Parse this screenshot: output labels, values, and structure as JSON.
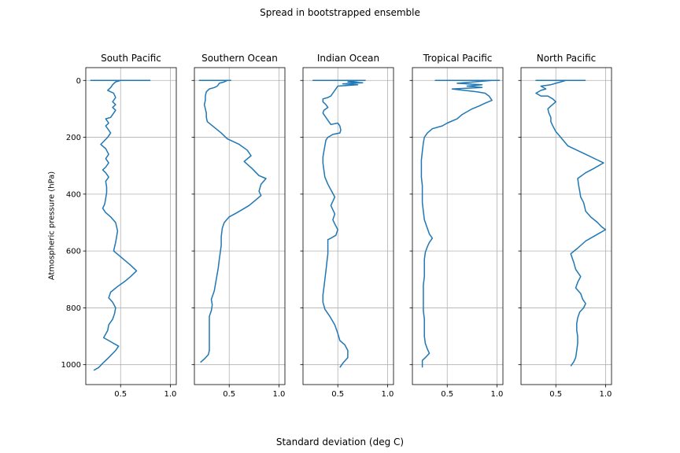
{
  "chart_data": {
    "type": "line",
    "title": "Spread in bootstrapped ensemble",
    "xlabel": "Standard deviation (deg C)",
    "ylabel": "Atmospheric pressure (hPa)",
    "xlim": [
      0.15,
      1.06
    ],
    "ylim": [
      1070,
      -45
    ],
    "y_inverted": true,
    "xticks": [
      "0.5",
      "1.0"
    ],
    "yticks": [
      "0",
      "200",
      "400",
      "600",
      "800",
      "1000"
    ],
    "grid": true,
    "line_color": "#1f77b4",
    "panels": [
      {
        "title": "South Pacific",
        "points": [
          [
            0.8,
            0
          ],
          [
            0.2,
            0
          ],
          [
            0.5,
            0
          ],
          [
            0.45,
            5
          ],
          [
            0.42,
            15
          ],
          [
            0.4,
            25
          ],
          [
            0.37,
            35
          ],
          [
            0.43,
            45
          ],
          [
            0.45,
            60
          ],
          [
            0.42,
            75
          ],
          [
            0.45,
            85
          ],
          [
            0.42,
            95
          ],
          [
            0.45,
            105
          ],
          [
            0.43,
            115
          ],
          [
            0.4,
            130
          ],
          [
            0.35,
            135
          ],
          [
            0.38,
            150
          ],
          [
            0.35,
            160
          ],
          [
            0.38,
            175
          ],
          [
            0.4,
            185
          ],
          [
            0.37,
            200
          ],
          [
            0.3,
            225
          ],
          [
            0.35,
            240
          ],
          [
            0.38,
            260
          ],
          [
            0.35,
            275
          ],
          [
            0.38,
            290
          ],
          [
            0.35,
            305
          ],
          [
            0.32,
            315
          ],
          [
            0.35,
            325
          ],
          [
            0.38,
            340
          ],
          [
            0.35,
            355
          ],
          [
            0.36,
            375
          ],
          [
            0.36,
            395
          ],
          [
            0.35,
            415
          ],
          [
            0.34,
            435
          ],
          [
            0.32,
            450
          ],
          [
            0.35,
            465
          ],
          [
            0.4,
            480
          ],
          [
            0.45,
            500
          ],
          [
            0.47,
            530
          ],
          [
            0.45,
            570
          ],
          [
            0.43,
            600
          ],
          [
            0.5,
            620
          ],
          [
            0.6,
            650
          ],
          [
            0.66,
            670
          ],
          [
            0.6,
            690
          ],
          [
            0.55,
            705
          ],
          [
            0.47,
            725
          ],
          [
            0.4,
            745
          ],
          [
            0.38,
            765
          ],
          [
            0.42,
            780
          ],
          [
            0.45,
            800
          ],
          [
            0.44,
            820
          ],
          [
            0.42,
            840
          ],
          [
            0.38,
            860
          ],
          [
            0.37,
            880
          ],
          [
            0.33,
            905
          ],
          [
            0.38,
            915
          ],
          [
            0.43,
            925
          ],
          [
            0.48,
            935
          ],
          [
            0.45,
            950
          ],
          [
            0.38,
            975
          ],
          [
            0.32,
            995
          ],
          [
            0.28,
            1010
          ],
          [
            0.23,
            1020
          ]
        ]
      },
      {
        "title": "Southern Ocean",
        "points": [
          [
            0.52,
            0
          ],
          [
            0.2,
            0
          ],
          [
            0.48,
            0
          ],
          [
            0.45,
            5
          ],
          [
            0.4,
            10
          ],
          [
            0.38,
            20
          ],
          [
            0.35,
            25
          ],
          [
            0.3,
            30
          ],
          [
            0.27,
            40
          ],
          [
            0.26,
            55
          ],
          [
            0.26,
            70
          ],
          [
            0.25,
            85
          ],
          [
            0.26,
            100
          ],
          [
            0.27,
            115
          ],
          [
            0.27,
            130
          ],
          [
            0.28,
            145
          ],
          [
            0.35,
            165
          ],
          [
            0.42,
            185
          ],
          [
            0.48,
            205
          ],
          [
            0.6,
            225
          ],
          [
            0.68,
            245
          ],
          [
            0.72,
            265
          ],
          [
            0.65,
            285
          ],
          [
            0.73,
            310
          ],
          [
            0.8,
            335
          ],
          [
            0.87,
            345
          ],
          [
            0.82,
            365
          ],
          [
            0.8,
            390
          ],
          [
            0.82,
            405
          ],
          [
            0.7,
            440
          ],
          [
            0.58,
            465
          ],
          [
            0.5,
            480
          ],
          [
            0.45,
            500
          ],
          [
            0.43,
            520
          ],
          [
            0.42,
            550
          ],
          [
            0.42,
            580
          ],
          [
            0.41,
            605
          ],
          [
            0.4,
            630
          ],
          [
            0.39,
            660
          ],
          [
            0.37,
            700
          ],
          [
            0.35,
            740
          ],
          [
            0.32,
            770
          ],
          [
            0.33,
            790
          ],
          [
            0.32,
            810
          ],
          [
            0.3,
            830
          ],
          [
            0.3,
            855
          ],
          [
            0.3,
            880
          ],
          [
            0.3,
            905
          ],
          [
            0.3,
            930
          ],
          [
            0.3,
            950
          ],
          [
            0.29,
            965
          ],
          [
            0.25,
            980
          ],
          [
            0.21,
            992
          ]
        ]
      },
      {
        "title": "Indian Ocean",
        "points": [
          [
            0.78,
            0
          ],
          [
            0.25,
            0
          ],
          [
            0.72,
            0
          ],
          [
            0.6,
            5
          ],
          [
            0.75,
            8
          ],
          [
            0.55,
            12
          ],
          [
            0.7,
            15
          ],
          [
            0.5,
            20
          ],
          [
            0.48,
            30
          ],
          [
            0.45,
            45
          ],
          [
            0.43,
            55
          ],
          [
            0.4,
            60
          ],
          [
            0.35,
            65
          ],
          [
            0.35,
            75
          ],
          [
            0.38,
            85
          ],
          [
            0.4,
            95
          ],
          [
            0.36,
            105
          ],
          [
            0.35,
            115
          ],
          [
            0.37,
            125
          ],
          [
            0.4,
            140
          ],
          [
            0.43,
            155
          ],
          [
            0.5,
            150
          ],
          [
            0.52,
            160
          ],
          [
            0.53,
            175
          ],
          [
            0.52,
            185
          ],
          [
            0.45,
            190
          ],
          [
            0.4,
            200
          ],
          [
            0.38,
            210
          ],
          [
            0.37,
            230
          ],
          [
            0.36,
            250
          ],
          [
            0.35,
            270
          ],
          [
            0.35,
            290
          ],
          [
            0.36,
            315
          ],
          [
            0.37,
            340
          ],
          [
            0.4,
            365
          ],
          [
            0.43,
            385
          ],
          [
            0.47,
            410
          ],
          [
            0.45,
            425
          ],
          [
            0.43,
            440
          ],
          [
            0.45,
            455
          ],
          [
            0.47,
            470
          ],
          [
            0.45,
            490
          ],
          [
            0.47,
            505
          ],
          [
            0.5,
            525
          ],
          [
            0.48,
            545
          ],
          [
            0.43,
            555
          ],
          [
            0.4,
            560
          ],
          [
            0.4,
            580
          ],
          [
            0.4,
            610
          ],
          [
            0.39,
            640
          ],
          [
            0.38,
            670
          ],
          [
            0.37,
            700
          ],
          [
            0.36,
            730
          ],
          [
            0.35,
            755
          ],
          [
            0.35,
            780
          ],
          [
            0.37,
            805
          ],
          [
            0.42,
            830
          ],
          [
            0.47,
            860
          ],
          [
            0.5,
            890
          ],
          [
            0.52,
            915
          ],
          [
            0.57,
            930
          ],
          [
            0.6,
            950
          ],
          [
            0.6,
            975
          ],
          [
            0.55,
            995
          ],
          [
            0.52,
            1010
          ]
        ]
      },
      {
        "title": "Tropical Pacific",
        "points": [
          [
            1.03,
            0
          ],
          [
            0.38,
            0
          ],
          [
            0.95,
            0
          ],
          [
            0.6,
            10
          ],
          [
            0.85,
            15
          ],
          [
            0.7,
            20
          ],
          [
            0.85,
            25
          ],
          [
            0.55,
            30
          ],
          [
            0.8,
            40
          ],
          [
            0.88,
            45
          ],
          [
            0.92,
            55
          ],
          [
            0.95,
            70
          ],
          [
            0.88,
            80
          ],
          [
            0.82,
            90
          ],
          [
            0.75,
            100
          ],
          [
            0.7,
            110
          ],
          [
            0.65,
            120
          ],
          [
            0.6,
            135
          ],
          [
            0.5,
            150
          ],
          [
            0.45,
            160
          ],
          [
            0.35,
            170
          ],
          [
            0.3,
            185
          ],
          [
            0.27,
            200
          ],
          [
            0.26,
            220
          ],
          [
            0.25,
            250
          ],
          [
            0.24,
            280
          ],
          [
            0.24,
            310
          ],
          [
            0.24,
            340
          ],
          [
            0.25,
            370
          ],
          [
            0.25,
            400
          ],
          [
            0.25,
            430
          ],
          [
            0.26,
            460
          ],
          [
            0.27,
            490
          ],
          [
            0.3,
            520
          ],
          [
            0.32,
            540
          ],
          [
            0.35,
            555
          ],
          [
            0.32,
            570
          ],
          [
            0.3,
            585
          ],
          [
            0.28,
            605
          ],
          [
            0.27,
            630
          ],
          [
            0.27,
            660
          ],
          [
            0.27,
            690
          ],
          [
            0.26,
            720
          ],
          [
            0.26,
            750
          ],
          [
            0.26,
            780
          ],
          [
            0.26,
            810
          ],
          [
            0.27,
            840
          ],
          [
            0.27,
            870
          ],
          [
            0.27,
            900
          ],
          [
            0.28,
            925
          ],
          [
            0.3,
            945
          ],
          [
            0.32,
            960
          ],
          [
            0.28,
            975
          ],
          [
            0.25,
            985
          ],
          [
            0.25,
            1010
          ]
        ]
      },
      {
        "title": "North Pacific",
        "points": [
          [
            0.8,
            0
          ],
          [
            0.3,
            0
          ],
          [
            0.6,
            0
          ],
          [
            0.55,
            5
          ],
          [
            0.5,
            10
          ],
          [
            0.45,
            15
          ],
          [
            0.35,
            20
          ],
          [
            0.4,
            30
          ],
          [
            0.35,
            35
          ],
          [
            0.3,
            45
          ],
          [
            0.35,
            55
          ],
          [
            0.42,
            55
          ],
          [
            0.47,
            65
          ],
          [
            0.5,
            75
          ],
          [
            0.45,
            90
          ],
          [
            0.42,
            100
          ],
          [
            0.43,
            115
          ],
          [
            0.45,
            130
          ],
          [
            0.45,
            145
          ],
          [
            0.47,
            160
          ],
          [
            0.5,
            180
          ],
          [
            0.55,
            200
          ],
          [
            0.62,
            230
          ],
          [
            0.8,
            260
          ],
          [
            0.92,
            280
          ],
          [
            0.98,
            290
          ],
          [
            0.88,
            310
          ],
          [
            0.8,
            325
          ],
          [
            0.72,
            345
          ],
          [
            0.73,
            370
          ],
          [
            0.74,
            390
          ],
          [
            0.75,
            410
          ],
          [
            0.78,
            430
          ],
          [
            0.8,
            460
          ],
          [
            0.85,
            480
          ],
          [
            0.92,
            500
          ],
          [
            0.96,
            515
          ],
          [
            1.0,
            525
          ],
          [
            0.9,
            545
          ],
          [
            0.8,
            565
          ],
          [
            0.72,
            590
          ],
          [
            0.65,
            610
          ],
          [
            0.68,
            640
          ],
          [
            0.7,
            665
          ],
          [
            0.75,
            690
          ],
          [
            0.72,
            710
          ],
          [
            0.7,
            730
          ],
          [
            0.75,
            750
          ],
          [
            0.77,
            770
          ],
          [
            0.8,
            785
          ],
          [
            0.78,
            800
          ],
          [
            0.74,
            815
          ],
          [
            0.72,
            835
          ],
          [
            0.71,
            855
          ],
          [
            0.71,
            880
          ],
          [
            0.72,
            900
          ],
          [
            0.72,
            925
          ],
          [
            0.71,
            950
          ],
          [
            0.7,
            975
          ],
          [
            0.68,
            990
          ],
          [
            0.65,
            1005
          ]
        ]
      }
    ]
  }
}
